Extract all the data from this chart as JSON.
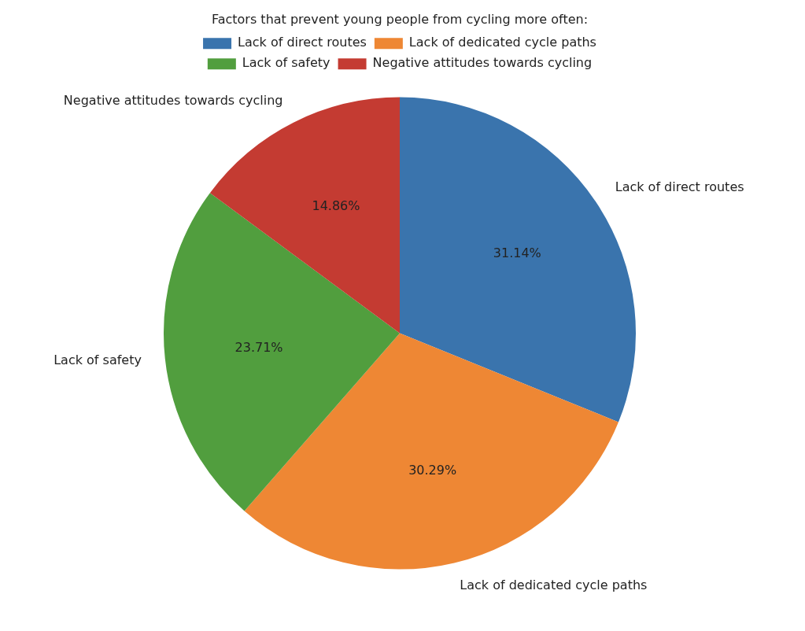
{
  "chart_data": {
    "type": "pie",
    "legend_title": "Factors that prevent young people from cycling more often:",
    "categories": [
      "Lack of direct routes",
      "Lack of dedicated cycle paths",
      "Lack of safety",
      "Negative attitudes towards cycling"
    ],
    "values": [
      31.14,
      30.29,
      23.71,
      14.86
    ],
    "value_labels": [
      "31.14%",
      "30.29%",
      "23.71%",
      "14.86%"
    ],
    "colors": [
      "#3a74ad",
      "#ee8734",
      "#519e3e",
      "#c43b32"
    ],
    "legend": "top"
  }
}
